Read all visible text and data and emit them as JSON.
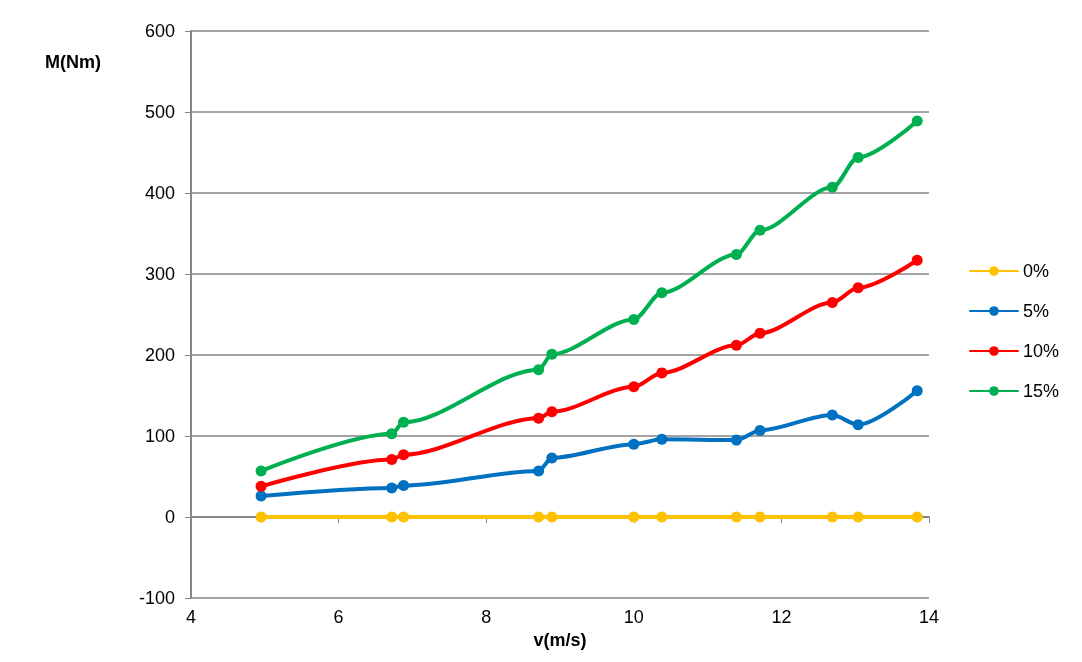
{
  "chart_data": {
    "type": "line",
    "xlabel": "v(m/s)",
    "ylabel": "M(Nm)",
    "x": [
      4.95,
      6.72,
      6.88,
      8.71,
      8.89,
      10.0,
      10.38,
      11.39,
      11.71,
      12.69,
      13.04,
      13.84
    ],
    "xlim": [
      4,
      14
    ],
    "xticks": [
      4,
      6,
      8,
      10,
      12,
      14
    ],
    "ylim": [
      -100,
      600
    ],
    "yticks": [
      -100,
      0,
      100,
      200,
      300,
      400,
      500,
      600
    ],
    "grid": "y",
    "legend": "right",
    "marker": "circle",
    "line_style": "solid",
    "series": [
      {
        "name": "0%",
        "color": "#ffc000",
        "values": [
          0,
          0,
          0,
          0,
          0,
          0,
          0,
          0,
          0,
          0,
          0,
          0
        ]
      },
      {
        "name": "5%",
        "color": "#0070c0",
        "values": [
          26,
          36,
          39,
          57,
          73,
          90,
          96,
          95,
          107,
          126,
          114,
          156
        ]
      },
      {
        "name": "10%",
        "color": "#ff0000",
        "values": [
          38,
          71,
          77,
          122,
          130,
          161,
          178,
          212,
          227,
          265,
          283,
          317
        ]
      },
      {
        "name": "15%",
        "color": "#00b050",
        "values": [
          57,
          103,
          117,
          182,
          201,
          244,
          277,
          324,
          354,
          407,
          444,
          489
        ]
      }
    ]
  }
}
